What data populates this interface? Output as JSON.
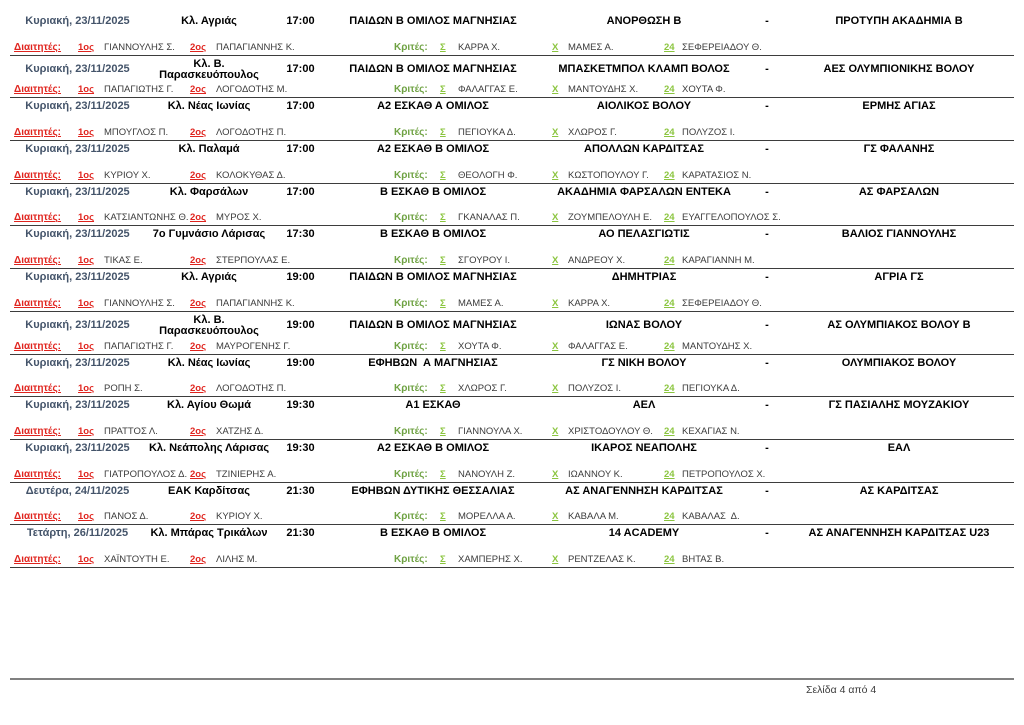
{
  "page": {
    "footer": "Σελίδα 4 από 4"
  },
  "colors": {
    "date_text": "#44546a",
    "referee_red": "#e0241e",
    "judges_label_green": "#6fa243",
    "judge_symbol_green": "#8bc53f",
    "name_gray": "#3b3b3b",
    "row_border": "#3d3d3d",
    "footer_line_gray": "#808080"
  },
  "labels": {
    "referees": "Διαιτητές:",
    "ref1": "1ος",
    "ref2": "2ος",
    "judges": "Κριτές:",
    "judge_s": "Σ",
    "judge_x": "Χ",
    "judge_24": "24",
    "separator": "-"
  },
  "matches": [
    {
      "date": "Κυριακή, 23/11/2025",
      "venue": "Κλ. Αγριάς",
      "time": "17:00",
      "league": "ΠΑΙΔΩΝ Β ΟΜΙΛΟΣ ΜΑΓΝΗΣΙΑΣ",
      "home": "ΑΝΟΡΘΩΣΗ Β",
      "away": "ΠΡΟΤΥΠΗ ΑΚΑΔΗΜΙΑ Β",
      "referee_1": "ΓΙΑΝΝΟΥΛΗΣ Σ.",
      "referee_2": "ΠΑΠΑΓΙΑΝΝΗΣ Κ.",
      "judge_s": "ΚΑΡΡΑ Χ.",
      "judge_x": "ΜΑΜΕΣ Α.",
      "judge_24": "ΣΕΦΕΡΕΙΑΔΟΥ Θ."
    },
    {
      "date": "Κυριακή, 23/11/2025",
      "venue": "Κλ. Β. Παρασκευόπουλος",
      "time": "17:00",
      "league": "ΠΑΙΔΩΝ Β ΟΜΙΛΟΣ ΜΑΓΝΗΣΙΑΣ",
      "home": "ΜΠΑΣΚΕΤΜΠΟΛ ΚΛΑΜΠ ΒΟΛΟΣ",
      "away": "ΑΕΣ ΟΛΥΜΠΙΟΝΙΚΗΣ ΒΟΛΟΥ",
      "referee_1": "ΠΑΠΑΓΙΩΤΗΣ Γ.",
      "referee_2": "ΛΟΓΟΔΟΤΗΣ Μ.",
      "judge_s": "ΦΑΛΑΓΓΑΣ Ε.",
      "judge_x": "ΜΑΝΤΟΥΔΗΣ Χ.",
      "judge_24": "ΧΟΥΤΑ Φ."
    },
    {
      "date": "Κυριακή, 23/11/2025",
      "venue": "Κλ. Νέας Ιωνίας",
      "time": "17:00",
      "league": "Α2 ΕΣΚΑΘ Α ΟΜΙΛΟΣ",
      "home": "ΑΙΟΛΙΚΟΣ ΒΟΛΟΥ",
      "away": "ΕΡΜΗΣ ΑΓΙΑΣ",
      "referee_1": "ΜΠΟΥΓΛΟΣ Π.",
      "referee_2": "ΛΟΓΟΔΟΤΗΣ Π.",
      "judge_s": "ΠΕΓΙΟΥΚΑ Δ.",
      "judge_x": "ΧΛΩΡΟΣ Γ.",
      "judge_24": "ΠΟΛΥΖΟΣ Ι."
    },
    {
      "date": "Κυριακή, 23/11/2025",
      "venue": "Κλ. Παλαμά",
      "time": "17:00",
      "league": "Α2 ΕΣΚΑΘ Β ΟΜΙΛΟΣ",
      "home": "ΑΠΟΛΛΩΝ ΚΑΡΔΙΤΣΑΣ",
      "away": "ΓΣ ΦΑΛΑΝΗΣ",
      "referee_1": "ΚΥΡΙΟΥ Χ.",
      "referee_2": "ΚΟΛΟΚΥΘΑΣ Δ.",
      "judge_s": "ΘΕΟΛΟΓΗ Φ.",
      "judge_x": "ΚΩΣΤΟΠΟΥΛΟΥ Γ.",
      "judge_24": "ΚΑΡΑΤΑΣΙΟΣ Ν."
    },
    {
      "date": "Κυριακή, 23/11/2025",
      "venue": "Κλ. Φαρσάλων",
      "time": "17:00",
      "league": "Β ΕΣΚΑΘ Β ΟΜΙΛΟΣ",
      "home": "ΑΚΑΔΗΜΙΑ ΦΑΡΣΑΛΩΝ ΕΝΤΕΚΑ",
      "away": "ΑΣ ΦΑΡΣΑΛΩΝ",
      "referee_1": "ΚΑΤΣΙΑΝΤΩΝΗΣ Θ.",
      "referee_2": "ΜΥΡΟΣ Χ.",
      "judge_s": "ΓΚΑΝΑΛΑΣ Π.",
      "judge_x": "ΖΟΥΜΠΕΛΟΥΛΗ Ε.",
      "judge_24": "ΕΥΑΓΓΕΛΟΠΟΥΛΟΣ Σ."
    },
    {
      "date": "Κυριακή, 23/11/2025",
      "venue": "7ο Γυμνάσιο Λάρισας",
      "time": "17:30",
      "league": "Β ΕΣΚΑΘ Β ΟΜΙΛΟΣ",
      "home": "ΑΟ ΠΕΛΑΣΓΙΩΤΙΣ",
      "away": "ΒΑΛΙΟΣ ΓΙΑΝΝΟΥΛΗΣ",
      "referee_1": "ΤΙΚΑΣ Ε.",
      "referee_2": "ΣΤΕΡΠΟΥΛΑΣ Ε.",
      "judge_s": "ΣΓΟΥΡΟΥ Ι.",
      "judge_x": "ΑΝΔΡΕΟΥ Χ.",
      "judge_24": "ΚΑΡΑΓΙΑΝΝΗ Μ."
    },
    {
      "date": "Κυριακή, 23/11/2025",
      "venue": "Κλ. Αγριάς",
      "time": "19:00",
      "league": "ΠΑΙΔΩΝ Β ΟΜΙΛΟΣ ΜΑΓΝΗΣΙΑΣ",
      "home": "ΔΗΜΗΤΡΙΑΣ",
      "away": "ΑΓΡΙΑ ΓΣ",
      "referee_1": "ΓΙΑΝΝΟΥΛΗΣ Σ.",
      "referee_2": "ΠΑΠΑΓΙΑΝΝΗΣ Κ.",
      "judge_s": "ΜΑΜΕΣ Α.",
      "judge_x": "ΚΑΡΡΑ Χ.",
      "judge_24": "ΣΕΦΕΡΕΙΑΔΟΥ Θ."
    },
    {
      "date": "Κυριακή, 23/11/2025",
      "venue": "Κλ. Β. Παρασκευόπουλος",
      "time": "19:00",
      "league": "ΠΑΙΔΩΝ Β ΟΜΙΛΟΣ ΜΑΓΝΗΣΙΑΣ",
      "home": "ΙΩΝΑΣ ΒΟΛΟΥ",
      "away": "ΑΣ ΟΛΥΜΠΙΑΚΟΣ ΒΟΛΟΥ Β",
      "referee_1": "ΠΑΠΑΓΙΩΤΗΣ Γ.",
      "referee_2": "ΜΑΥΡΟΓΕΝΗΣ Γ.",
      "judge_s": "ΧΟΥΤΑ Φ.",
      "judge_x": "ΦΑΛΑΓΓΑΣ Ε.",
      "judge_24": "ΜΑΝΤΟΥΔΗΣ Χ."
    },
    {
      "date": "Κυριακή, 23/11/2025",
      "venue": "Κλ. Νέας Ιωνίας",
      "time": "19:00",
      "league": "ΕΦΗΒΩΝ  Α ΜΑΓΝΗΣΙΑΣ",
      "home": "ΓΣ ΝΙΚΗ ΒΟΛΟΥ",
      "away": "ΟΛΥΜΠΙΑΚΟΣ ΒΟΛΟΥ",
      "referee_1": "ΡΟΠΗ Σ.",
      "referee_2": "ΛΟΓΟΔΟΤΗΣ Π.",
      "judge_s": "ΧΛΩΡΟΣ Γ.",
      "judge_x": "ΠΟΛΥΖΟΣ Ι.",
      "judge_24": "ΠΕΓΙΟΥΚΑ Δ."
    },
    {
      "date": "Κυριακή, 23/11/2025",
      "venue": "Κλ. Αγίου Θωμά",
      "time": "19:30",
      "league": "Α1 ΕΣΚΑΘ",
      "home": "ΑΕΛ",
      "away": "ΓΣ ΠΑΣΙΑΛΗΣ ΜΟΥΖΑΚΙΟΥ",
      "referee_1": "ΠΡΑΤΤΟΣ Λ.",
      "referee_2": "ΧΑΤΖΗΣ Δ.",
      "judge_s": "ΓΙΑΝΝΟΥΛΑ Χ.",
      "judge_x": "ΧΡΙΣΤΟΔΟΥΛΟΥ Θ.",
      "judge_24": "ΚΕΧΑΓΙΑΣ Ν."
    },
    {
      "date": "Κυριακή, 23/11/2025",
      "venue": "Κλ. Νεάπολης Λάρισας",
      "time": "19:30",
      "league": "Α2 ΕΣΚΑΘ Β ΟΜΙΛΟΣ",
      "home": "ΙΚΑΡΟΣ ΝΕΑΠΟΛΗΣ",
      "away": "ΕΑΛ",
      "referee_1": "ΓΙΑΤΡΟΠΟΥΛΟΣ Δ.",
      "referee_2": "ΤΖΙΝΙΕΡΗΣ Α.",
      "judge_s": "ΝΑΝΟΥΛΗ Ζ.",
      "judge_x": "ΙΩΑΝΝΟΥ Κ.",
      "judge_24": "ΠΕΤΡΟΠΟΥΛΟΣ Χ."
    },
    {
      "date": "Δευτέρα, 24/11/2025",
      "venue": "ΕΑΚ Καρδίτσας",
      "time": "21:30",
      "league": "ΕΦΗΒΩΝ ΔΥΤΙΚΗΣ ΘΕΣΣΑΛΙΑΣ",
      "home": "ΑΣ ΑΝΑΓΕΝΝΗΣΗ ΚΑΡΔΙΤΣΑΣ",
      "away": "ΑΣ ΚΑΡΔΙΤΣΑΣ",
      "referee_1": "ΠΑΝΟΣ Δ.",
      "referee_2": "ΚΥΡΙΟΥ Χ.",
      "judge_s": "ΜΟΡΕΛΛΑ Α.",
      "judge_x": "ΚΑΒΑΛΑ Μ.",
      "judge_24": "ΚΑΒΑΛΑΣ  Δ."
    },
    {
      "date": "Τετάρτη, 26/11/2025",
      "venue": "Κλ. Μπάρας Τρικάλων",
      "time": "21:30",
      "league": "Β ΕΣΚΑΘ Β ΟΜΙΛΟΣ",
      "home": "14 ACADEMY",
      "away": "ΑΣ ΑΝΑΓΕΝΝΗΣΗ ΚΑΡΔΙΤΣΑΣ U23",
      "referee_1": "ΧΑΪΝΤΟΥΤΗ Ε.",
      "referee_2": "ΛΙΛΗΣ Μ.",
      "judge_s": "ΧΑΜΠΕΡΗΣ Χ.",
      "judge_x": "ΡΕΝΤΖΕΛΑΣ Κ.",
      "judge_24": "ΒΗΤΑΣ Β."
    }
  ]
}
